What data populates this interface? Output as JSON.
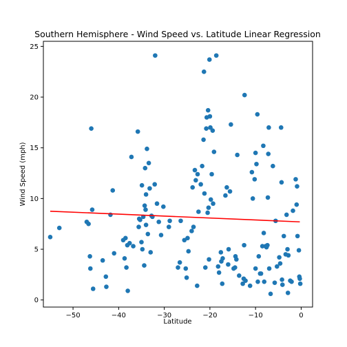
{
  "chart_data": {
    "type": "scatter",
    "title": "Southern Hemisphere - Wind Speed vs. Latitude Linear Regression",
    "xlabel": "Latitude",
    "ylabel": "Wind Speed (mph)",
    "xlim": [
      -56.5,
      2.5
    ],
    "ylim": [
      -0.7,
      25.5
    ],
    "xticks": [
      -50,
      -40,
      -30,
      -20,
      -10,
      0
    ],
    "yticks": [
      0,
      5,
      10,
      15,
      20,
      25
    ],
    "grid": false,
    "point_color": "#1f77b4",
    "line_color": "#ff0000",
    "regression_line": {
      "x": [
        -55,
        -0.3
      ],
      "y": [
        8.75,
        7.7
      ]
    },
    "points": [
      [
        -55,
        6.2
      ],
      [
        -53,
        7.1
      ],
      [
        -47,
        7.7
      ],
      [
        -46.6,
        7.5
      ],
      [
        -46.3,
        4.3
      ],
      [
        -46.2,
        3.1
      ],
      [
        -46,
        16.9
      ],
      [
        -45.8,
        8.9
      ],
      [
        -45.6,
        1.1
      ],
      [
        -43.5,
        3.9
      ],
      [
        -42.8,
        2.3
      ],
      [
        -42.7,
        1.3
      ],
      [
        -41.8,
        8.4
      ],
      [
        -41.3,
        10.8
      ],
      [
        -41,
        4.6
      ],
      [
        -39,
        5.9
      ],
      [
        -38.7,
        4.1
      ],
      [
        -38.5,
        6.1
      ],
      [
        -38.3,
        3.2
      ],
      [
        -38.1,
        5.4
      ],
      [
        -38,
        0.9
      ],
      [
        -37.6,
        5.6
      ],
      [
        -37.2,
        14.1
      ],
      [
        -36.8,
        5.3
      ],
      [
        -35.8,
        16.6
      ],
      [
        -35.6,
        7.2
      ],
      [
        -35.5,
        8
      ],
      [
        -35.3,
        7.9
      ],
      [
        -35,
        5.7
      ],
      [
        -34.9,
        11.3
      ],
      [
        -34.8,
        5
      ],
      [
        -34.6,
        8.2
      ],
      [
        -34.4,
        3.4
      ],
      [
        -34.3,
        9.3
      ],
      [
        -34.2,
        13
      ],
      [
        -34.1,
        8.9
      ],
      [
        -34,
        10.4
      ],
      [
        -34,
        7.4
      ],
      [
        -33.8,
        14.9
      ],
      [
        -33.6,
        6.5
      ],
      [
        -33.4,
        13.5
      ],
      [
        -33.2,
        11
      ],
      [
        -33,
        4.7
      ],
      [
        -32.8,
        8.3
      ],
      [
        -32.6,
        8.2
      ],
      [
        -32.1,
        11.4
      ],
      [
        -32,
        24.1
      ],
      [
        -31.6,
        9.5
      ],
      [
        -31.2,
        7.7
      ],
      [
        -30.7,
        6.4
      ],
      [
        -30.2,
        9.2
      ],
      [
        -29,
        7.2
      ],
      [
        -28.8,
        7.8
      ],
      [
        -27,
        3.2
      ],
      [
        -26.6,
        3.7
      ],
      [
        -26.4,
        7.8
      ],
      [
        -25.6,
        5.9
      ],
      [
        -25.3,
        3.1
      ],
      [
        -25.1,
        2.2
      ],
      [
        -24.9,
        6.1
      ],
      [
        -24.7,
        4.8
      ],
      [
        -24,
        6.8
      ],
      [
        -23.8,
        11.1
      ],
      [
        -23.6,
        7.2
      ],
      [
        -23.3,
        12.8
      ],
      [
        -23.1,
        11.8
      ],
      [
        -22.8,
        1.4
      ],
      [
        -22.7,
        12.4
      ],
      [
        -22.5,
        8.7
      ],
      [
        -22,
        11.4
      ],
      [
        -21.7,
        13.2
      ],
      [
        -21.4,
        15.8
      ],
      [
        -21.3,
        22.5
      ],
      [
        -21.2,
        10.5
      ],
      [
        -21,
        3.2
      ],
      [
        -20.8,
        16.9
      ],
      [
        -20.7,
        18
      ],
      [
        -20.5,
        8.6
      ],
      [
        -20.4,
        18.7
      ],
      [
        -20.3,
        9.1
      ],
      [
        -20.2,
        4
      ],
      [
        -20.1,
        23.7
      ],
      [
        -20,
        18.1
      ],
      [
        -19.9,
        17
      ],
      [
        -19.8,
        9.9
      ],
      [
        -19.6,
        12.4
      ],
      [
        -19.4,
        16.7
      ],
      [
        -19.3,
        9.5
      ],
      [
        -19.1,
        14.6
      ],
      [
        -18.6,
        24.1
      ],
      [
        -18.2,
        3.3
      ],
      [
        -18,
        2.7
      ],
      [
        -17.6,
        4.7
      ],
      [
        -17.5,
        3.8
      ],
      [
        -17.3,
        1.6
      ],
      [
        -17.2,
        4.1
      ],
      [
        -16.6,
        10.3
      ],
      [
        -16.3,
        11.1
      ],
      [
        -16,
        3.5
      ],
      [
        -15.9,
        5
      ],
      [
        -15.6,
        10.7
      ],
      [
        -15.4,
        17.3
      ],
      [
        -14.8,
        3.1
      ],
      [
        -14.5,
        3.2
      ],
      [
        -14.4,
        4.3
      ],
      [
        -14.2,
        4
      ],
      [
        -14,
        14.3
      ],
      [
        -13.6,
        2.4
      ],
      [
        -12.8,
        1.6
      ],
      [
        -12.6,
        2.1
      ],
      [
        -12.5,
        5.4
      ],
      [
        -12.4,
        20.2
      ],
      [
        -12.2,
        1.9
      ],
      [
        -11.2,
        1.4
      ],
      [
        -10.8,
        12.6
      ],
      [
        -10.6,
        10
      ],
      [
        -10.2,
        11.9
      ],
      [
        -10,
        3.1
      ],
      [
        -10,
        14.5
      ],
      [
        -9.8,
        13.4
      ],
      [
        -9.6,
        18.3
      ],
      [
        -9.5,
        1.8
      ],
      [
        -9.3,
        4.3
      ],
      [
        -9,
        2.6
      ],
      [
        -8.8,
        2.6
      ],
      [
        -8.5,
        5.3
      ],
      [
        -8.3,
        15.2
      ],
      [
        -8.2,
        6.6
      ],
      [
        -8.1,
        1.8
      ],
      [
        -7.8,
        5.3
      ],
      [
        -7.6,
        5.2
      ],
      [
        -7.4,
        5.4
      ],
      [
        -7.3,
        10.1
      ],
      [
        -7.2,
        14.4
      ],
      [
        -7.1,
        17
      ],
      [
        -7,
        3.1
      ],
      [
        -6.7,
        0.6
      ],
      [
        -6.2,
        13.2
      ],
      [
        -5.8,
        1.7
      ],
      [
        -5.6,
        7.8
      ],
      [
        -5.3,
        3.3
      ],
      [
        -4.8,
        4.2
      ],
      [
        -4.6,
        3.6
      ],
      [
        -4.4,
        17
      ],
      [
        -4.3,
        11.6
      ],
      [
        -4.2,
        2
      ],
      [
        -4.1,
        1.5
      ],
      [
        -3.8,
        6.3
      ],
      [
        -3.4,
        4.5
      ],
      [
        -3.2,
        8.4
      ],
      [
        -3,
        5
      ],
      [
        -2.9,
        0.7
      ],
      [
        -2.8,
        4.4
      ],
      [
        -2.4,
        1.9
      ],
      [
        -2.1,
        1.8
      ],
      [
        -1.8,
        8.8
      ],
      [
        -1.2,
        11.9
      ],
      [
        -1,
        9.4
      ],
      [
        -0.9,
        11.2
      ],
      [
        -0.8,
        6.3
      ],
      [
        -0.5,
        4.9
      ],
      [
        -0.4,
        2.3
      ],
      [
        -0.3,
        2.1
      ],
      [
        -0.2,
        1.6
      ]
    ]
  }
}
